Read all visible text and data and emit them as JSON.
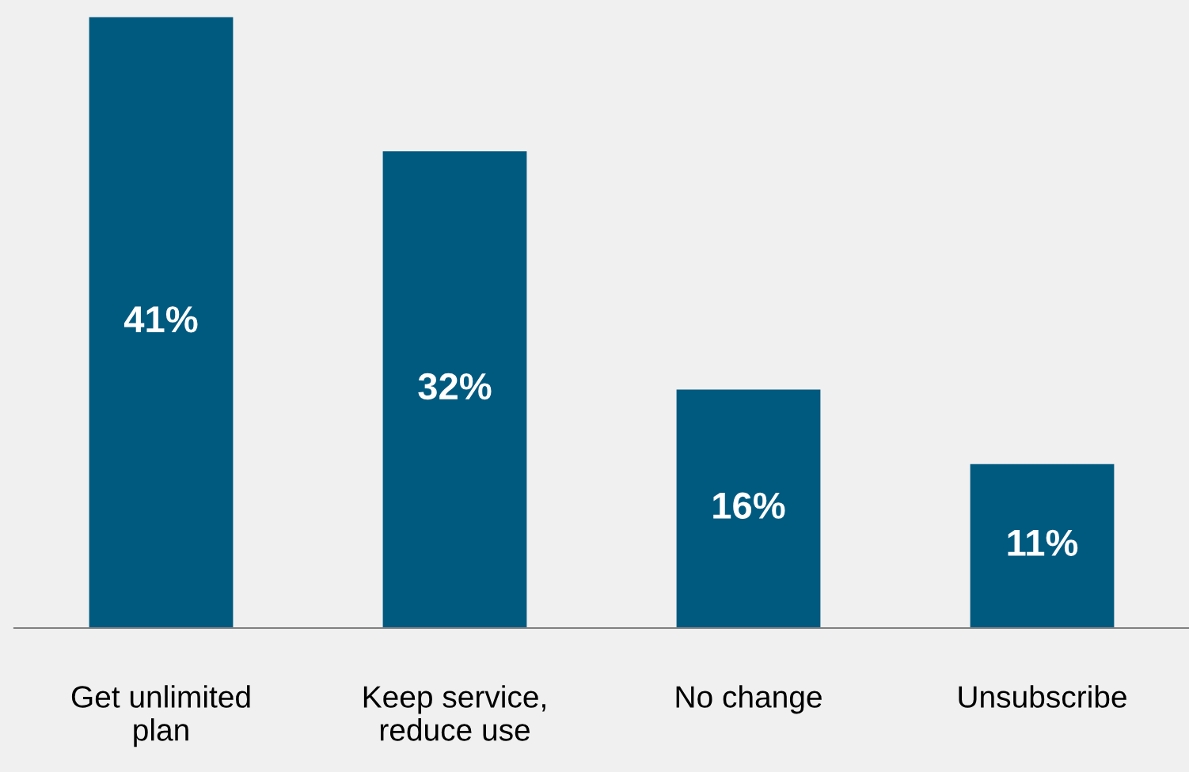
{
  "chart_data": {
    "type": "bar",
    "categories": [
      "Get unlimited\nplan",
      "Keep service,\nreduce use",
      "No change",
      "Unsubscribe"
    ],
    "values": [
      41,
      32,
      16,
      11
    ],
    "value_labels": [
      "41%",
      "32%",
      "16%",
      "11%"
    ],
    "color": "#005a80",
    "grid": false,
    "legend": false
  }
}
